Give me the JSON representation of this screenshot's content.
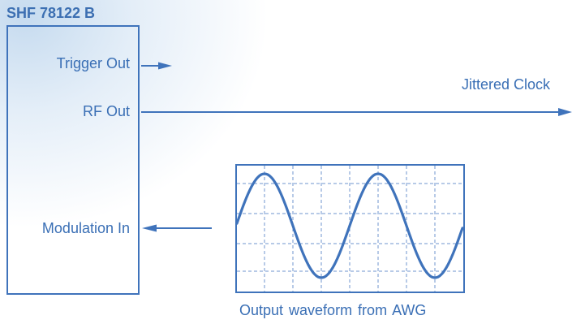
{
  "device": {
    "title": "SHF 78122 B"
  },
  "ports": {
    "trigger_out": "Trigger Out",
    "rf_out": "RF Out",
    "modulation_in": "Modulation In"
  },
  "signals": {
    "output": "Jittered Clock"
  },
  "scope": {
    "caption": "Output waveform from AWG"
  },
  "colors": {
    "primary": "#3f73bb",
    "text": "#3a6fb5",
    "grid": "#5b86c6"
  }
}
